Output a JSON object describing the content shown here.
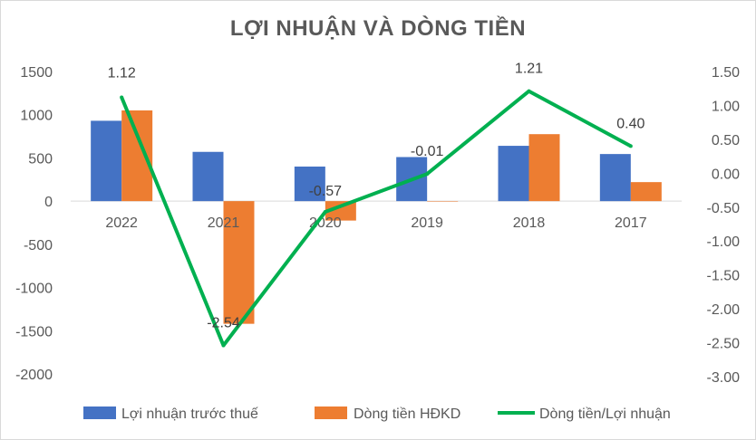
{
  "chart_data": {
    "type": "bar",
    "title": "LỢI NHUẬN VÀ DÒNG TIỀN",
    "categories": [
      "2022",
      "2021",
      "2020",
      "2019",
      "2018",
      "2017"
    ],
    "series": [
      {
        "name": "Lợi nhuận trước thuế",
        "type": "bar",
        "axis": "left",
        "color": "#4472C4",
        "values": [
          930,
          570,
          400,
          510,
          640,
          545
        ]
      },
      {
        "name": "Dòng tiền HĐKD",
        "type": "bar",
        "axis": "left",
        "color": "#ED7D31",
        "values": [
          1050,
          -1420,
          -225,
          -5,
          775,
          220
        ]
      },
      {
        "name": "Dòng tiền/Lợi nhuận",
        "type": "line",
        "axis": "right",
        "color": "#00B050",
        "values": [
          1.12,
          -2.54,
          -0.57,
          -0.01,
          1.21,
          0.4
        ],
        "labels": [
          "1.12",
          "-2.54",
          "-0.57",
          "-0.01",
          "1.21",
          "0.40"
        ]
      }
    ],
    "y_left": {
      "min": -2000,
      "max": 1500,
      "step": 500,
      "ticks": [
        "1500",
        "1000",
        "500",
        "0",
        "-500",
        "-1000",
        "-1500",
        "-2000"
      ]
    },
    "y_right": {
      "min": -3.0,
      "max": 1.5,
      "step": 0.5,
      "ticks": [
        "1.50",
        "1.00",
        "0.50",
        "0.00",
        "-0.50",
        "-1.00",
        "-1.50",
        "-2.00",
        "-2.50",
        "-3.00"
      ]
    },
    "grid": false,
    "legend_position": "bottom"
  }
}
